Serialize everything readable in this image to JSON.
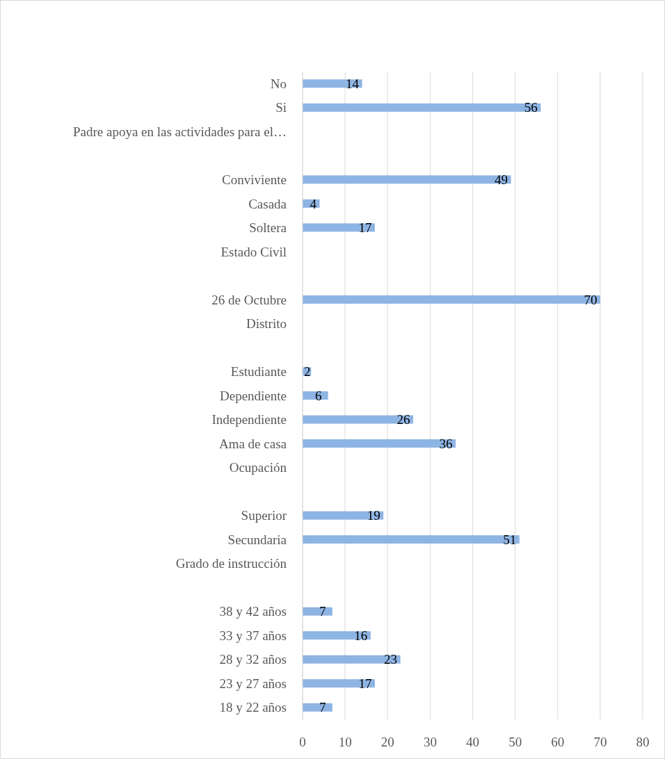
{
  "chart_data": {
    "type": "bar",
    "orientation": "horizontal",
    "categories": [
      "No",
      "Si",
      "Padre apoya en las actividades para el…",
      null,
      "Conviviente",
      "Casada",
      "Soltera",
      "Estado Civil",
      null,
      "26 de Octubre",
      "Distrito",
      null,
      "Estudiante",
      "Dependiente",
      "Independiente",
      "Ama de casa",
      "Ocupación",
      null,
      "Superior",
      "Secundaria",
      "Grado de instrucción",
      null,
      "38 y 42 años",
      "33 y 37 años",
      "28 y 32 años",
      "23 y 27 años",
      "18 y 22 años"
    ],
    "values": [
      14,
      56,
      null,
      null,
      49,
      4,
      17,
      null,
      null,
      70,
      null,
      null,
      2,
      6,
      26,
      36,
      null,
      null,
      19,
      51,
      null,
      null,
      7,
      16,
      23,
      17,
      7
    ],
    "color": "#8eb4e3",
    "xlim": [
      0,
      80
    ],
    "xticks": [
      0,
      10,
      20,
      30,
      40,
      50,
      60,
      70,
      80
    ],
    "grid": "x",
    "data_labels": true
  }
}
